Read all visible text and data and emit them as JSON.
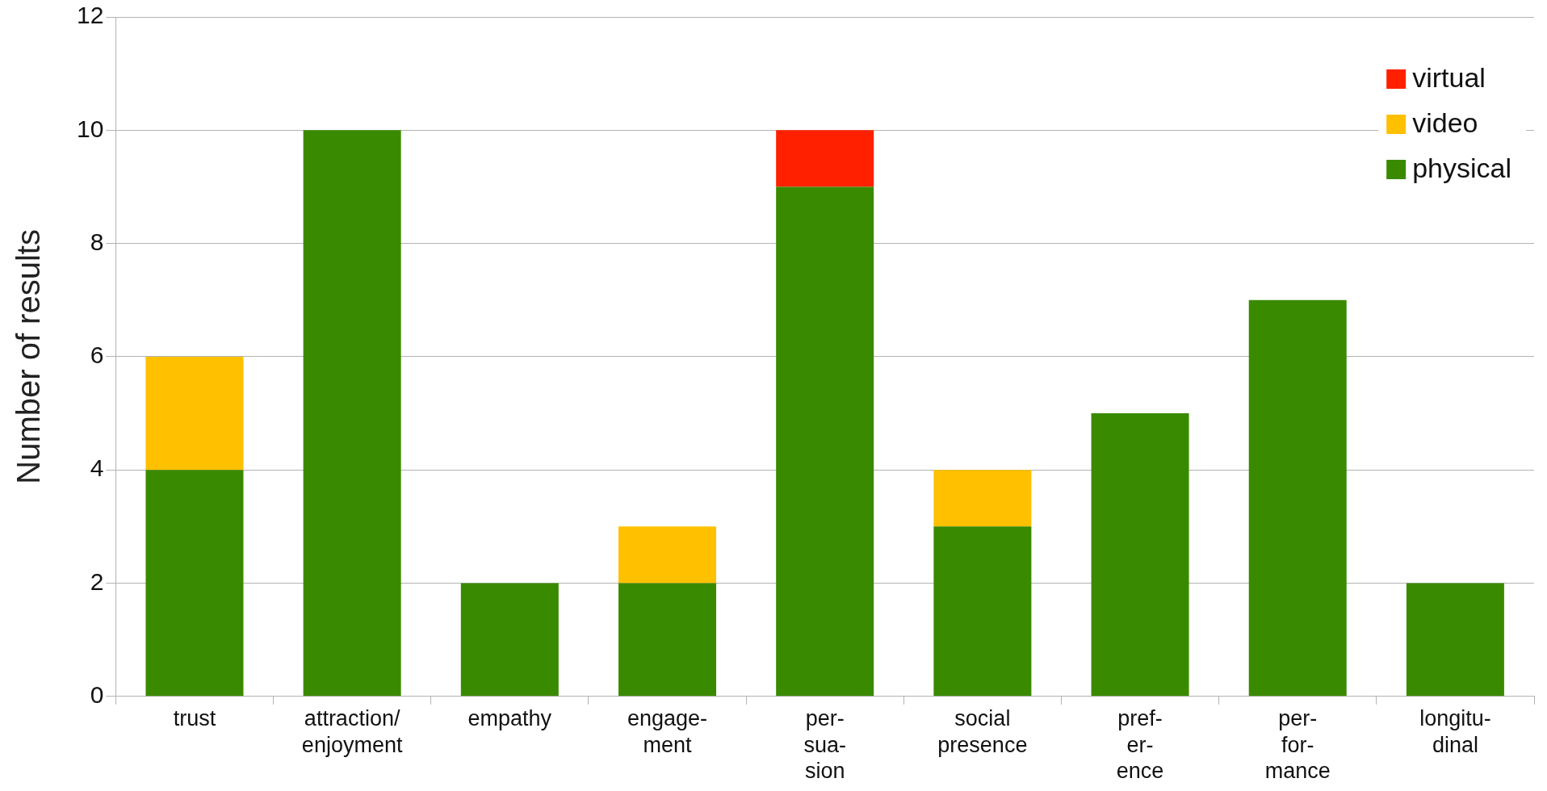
{
  "chart_data": {
    "type": "bar",
    "stacked": true,
    "ylabel": "Number of results",
    "categories": [
      "trust",
      "attraction/\nenjoyment",
      "empathy",
      "engage-\nment",
      "per-\nsua-\nsion",
      "social\npresence",
      "pref-\ner-\nence",
      "per-\nfor-\nmance",
      "longitu-\ndinal"
    ],
    "series": [
      {
        "name": "physical",
        "color": "#3a8a00",
        "values": [
          4,
          10,
          2,
          2,
          9,
          3,
          5,
          7,
          2
        ]
      },
      {
        "name": "video",
        "color": "#ffc000",
        "values": [
          2,
          0,
          0,
          1,
          0,
          1,
          0,
          0,
          0
        ]
      },
      {
        "name": "virtual",
        "color": "#ff2000",
        "values": [
          0,
          0,
          0,
          0,
          1,
          0,
          0,
          0,
          0
        ]
      }
    ],
    "ylim": [
      0,
      12
    ],
    "yticks": [
      0,
      2,
      4,
      6,
      8,
      10,
      12
    ],
    "grid": "y",
    "legend": "top right"
  }
}
